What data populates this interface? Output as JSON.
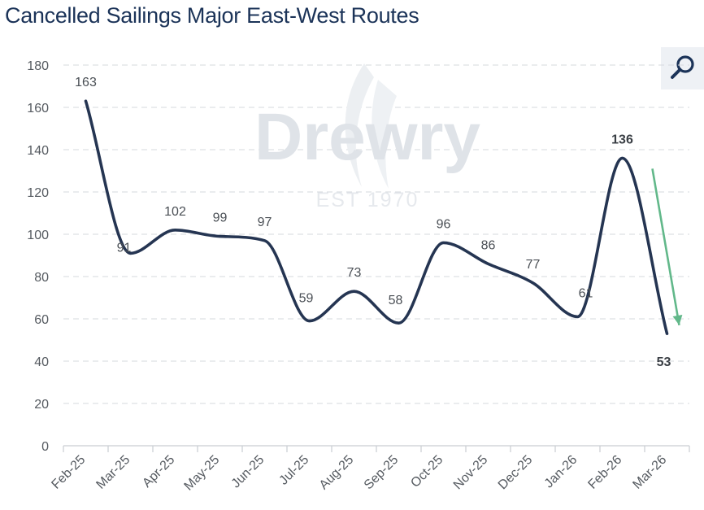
{
  "title": "Cancelled Sailings Major East-West Routes",
  "watermark": {
    "brand": "Drewry",
    "since": "EST 1970"
  },
  "icons": {
    "zoom": "magnifier-icon"
  },
  "colors": {
    "line": "#253552",
    "trend_arrow": "#62b88a",
    "grid": "#d5d9de",
    "title": "#1b3358"
  },
  "chart_data": {
    "type": "line",
    "title": "Cancelled Sailings Major East-West Routes",
    "xlabel": "",
    "ylabel": "",
    "ylim": [
      0,
      180
    ],
    "yticks": [
      0,
      20,
      40,
      60,
      80,
      100,
      120,
      140,
      160,
      180
    ],
    "categories": [
      "Feb-25",
      "Mar-25",
      "Apr-25",
      "May-25",
      "Jun-25",
      "Jul-25",
      "Aug-25",
      "Sep-25",
      "Oct-25",
      "Nov-25",
      "Dec-25",
      "Jan-26",
      "Feb-26",
      "Mar-26"
    ],
    "series": [
      {
        "name": "Cancelled Sailings",
        "values": [
          163,
          91,
          102,
          99,
          97,
          59,
          73,
          58,
          96,
          86,
          77,
          61,
          136,
          53
        ]
      }
    ],
    "data_labels": [
      "163",
      "91",
      "102",
      "99",
      "97",
      "59",
      "73",
      "58",
      "96",
      "86",
      "77",
      "61",
      "136",
      "53"
    ],
    "bold_labels": [
      12,
      13
    ],
    "annotation": "downward trend arrow from Feb-26 to Mar-26",
    "grid": true
  }
}
